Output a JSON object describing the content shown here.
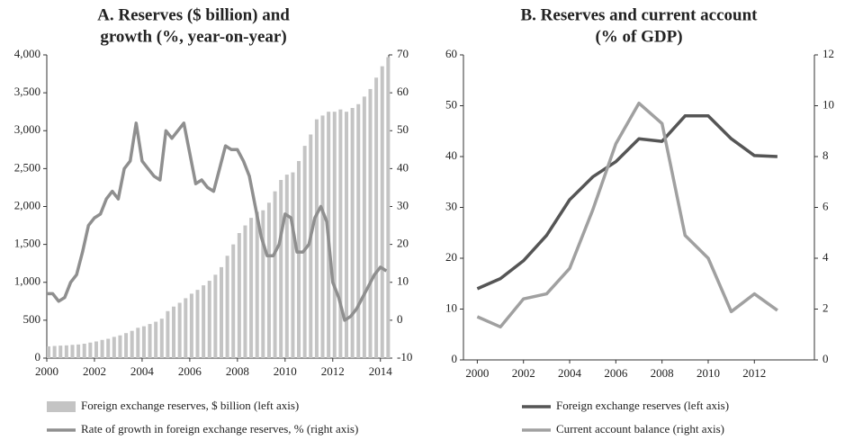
{
  "chart_data": [
    {
      "type": "combo",
      "title": [
        "A. Reserves ($ billion) and",
        "growth (%, year-on-year)"
      ],
      "x": [
        2000,
        2000.25,
        2000.5,
        2000.75,
        2001,
        2001.25,
        2001.5,
        2001.75,
        2002,
        2002.25,
        2002.5,
        2002.75,
        2003,
        2003.25,
        2003.5,
        2003.75,
        2004,
        2004.25,
        2004.5,
        2004.75,
        2005,
        2005.25,
        2005.5,
        2005.75,
        2006,
        2006.25,
        2006.5,
        2006.75,
        2007,
        2007.25,
        2007.5,
        2007.75,
        2008,
        2008.25,
        2008.5,
        2008.75,
        2009,
        2009.25,
        2009.5,
        2009.75,
        2010,
        2010.25,
        2010.5,
        2010.75,
        2011,
        2011.25,
        2011.5,
        2011.75,
        2012,
        2012.25,
        2012.5,
        2012.75,
        2013,
        2013.25,
        2013.5,
        2013.75,
        2014,
        2014.25
      ],
      "series": [
        {
          "name": "Foreign exchange reserves, $ billion (left axis)",
          "type": "bar",
          "color": "#c4c4c4",
          "values": [
            155,
            160,
            165,
            168,
            175,
            180,
            190,
            205,
            220,
            240,
            255,
            280,
            300,
            330,
            360,
            400,
            420,
            450,
            480,
            520,
            620,
            680,
            730,
            790,
            850,
            900,
            960,
            1020,
            1100,
            1200,
            1350,
            1500,
            1650,
            1750,
            1850,
            1930,
            1950,
            2050,
            2200,
            2350,
            2420,
            2450,
            2600,
            2800,
            2950,
            3150,
            3200,
            3250,
            3250,
            3280,
            3250,
            3300,
            3350,
            3450,
            3550,
            3700,
            3850,
            3970
          ]
        },
        {
          "name": "Rate of growth in foreign exchange reserves, % (right axis)",
          "type": "line",
          "axis": "y2",
          "color": "#8f8f8f",
          "values": [
            7,
            7,
            5,
            6,
            10,
            12,
            18,
            25,
            27,
            28,
            32,
            34,
            32,
            40,
            42,
            52,
            42,
            40,
            38,
            37,
            50,
            48,
            50,
            52,
            44,
            36,
            37,
            35,
            34,
            40,
            46,
            45,
            45,
            42,
            38,
            30,
            22,
            17,
            17,
            20,
            28,
            27,
            18,
            18,
            20,
            27,
            30,
            26,
            10,
            6,
            0,
            1,
            3,
            6,
            9,
            12,
            14,
            13
          ]
        }
      ],
      "xlim": [
        2000,
        2014.35
      ],
      "xticks": [
        2000,
        2002,
        2004,
        2006,
        2008,
        2010,
        2012,
        2014
      ],
      "ylim": [
        0,
        4000
      ],
      "yticks": [
        0,
        500,
        {
          "value": 1000,
          "label": "1,000"
        },
        {
          "value": 1500,
          "label": "1,500"
        },
        {
          "value": 2000,
          "label": "2,000"
        },
        {
          "value": 2500,
          "label": "2,500"
        },
        {
          "value": 3000,
          "label": "3,000"
        },
        {
          "value": 3500,
          "label": "3,500"
        },
        {
          "value": 4000,
          "label": "4,000"
        }
      ],
      "y2lim": [
        -10,
        70
      ],
      "y2ticks": [
        -10,
        0,
        10,
        20,
        30,
        40,
        50,
        60,
        70
      ]
    },
    {
      "type": "line",
      "title": [
        "B. Reserves and current account",
        "(% of GDP)"
      ],
      "x": [
        2000,
        2001,
        2002,
        2003,
        2004,
        2005,
        2006,
        2007,
        2008,
        2009,
        2010,
        2011,
        2012,
        2013
      ],
      "series": [
        {
          "name": "Foreign exchange reserves (left axis)",
          "type": "line",
          "color": "#555555",
          "values": [
            14,
            16,
            19.5,
            24.5,
            31.5,
            36,
            39,
            43.5,
            43,
            48,
            48,
            43.5,
            40.2,
            40
          ]
        },
        {
          "name": "Current account balance (right axis)",
          "type": "line",
          "axis": "y2",
          "color": "#a0a0a0",
          "values": [
            1.7,
            1.3,
            2.4,
            2.6,
            3.6,
            5.9,
            8.5,
            10.1,
            9.3,
            4.9,
            4.0,
            1.9,
            2.6,
            1.95
          ]
        }
      ],
      "xlim": [
        1999.4,
        2014.6
      ],
      "xticks": [
        2000,
        2002,
        2004,
        2006,
        2008,
        2010,
        2012
      ],
      "ylim": [
        0,
        60
      ],
      "yticks": [
        0,
        10,
        20,
        30,
        40,
        50,
        60
      ],
      "y2lim": [
        0,
        12
      ],
      "y2ticks": [
        0,
        2,
        4,
        6,
        8,
        10,
        12
      ]
    }
  ]
}
